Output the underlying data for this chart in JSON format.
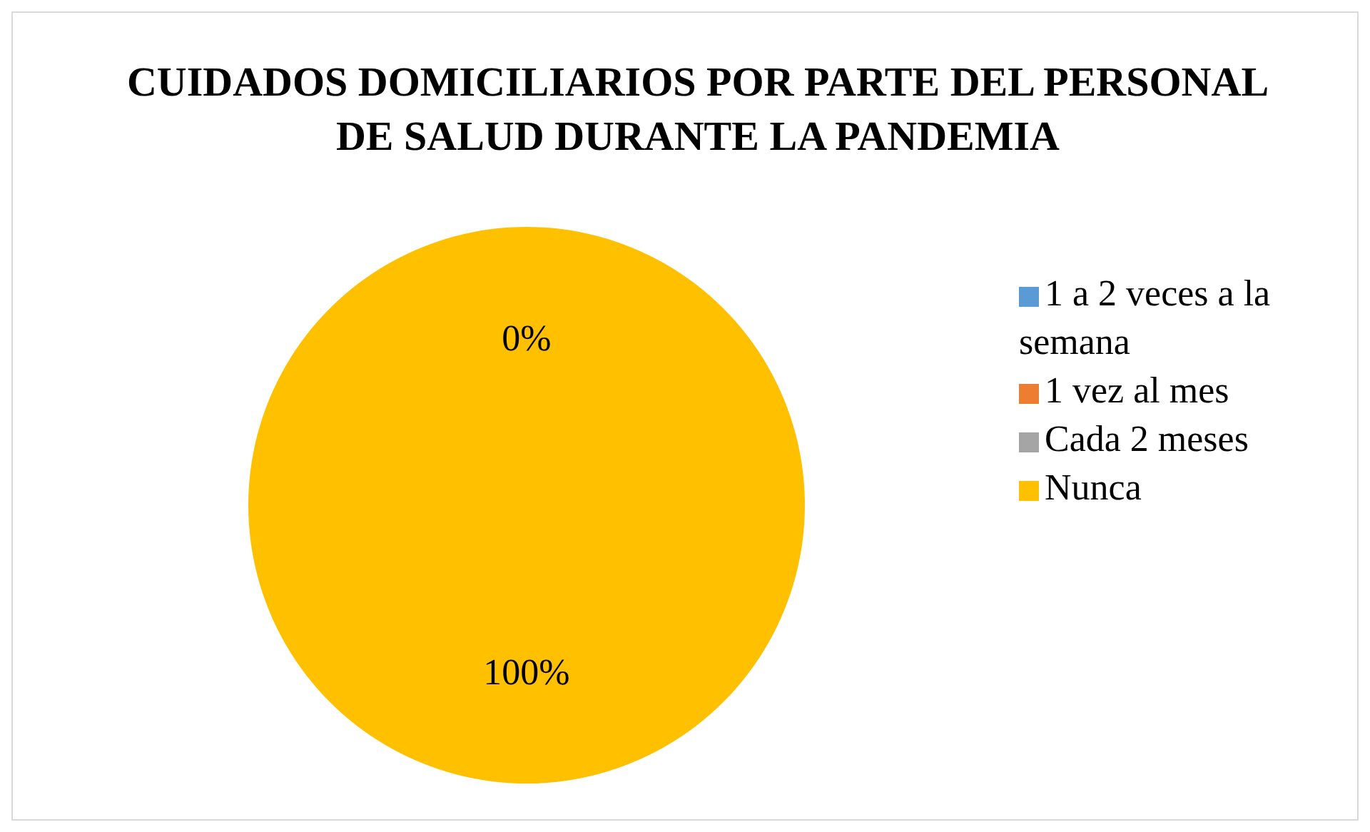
{
  "chart_data": {
    "type": "pie",
    "title": "CUIDADOS DOMICILIARIOS POR PARTE DEL PERSONAL DE SALUD DURANTE LA PANDEMIA",
    "categories": [
      "1 a 2 veces a la semana",
      "1 vez al mes",
      "Cada 2 meses",
      "Nunca"
    ],
    "values": [
      0,
      0,
      0,
      100
    ],
    "colors": [
      "#5b9bd5",
      "#ed7d31",
      "#a5a5a5",
      "#ffc000"
    ],
    "value_labels": [
      "0%",
      null,
      null,
      "100%"
    ],
    "legend": "right"
  }
}
